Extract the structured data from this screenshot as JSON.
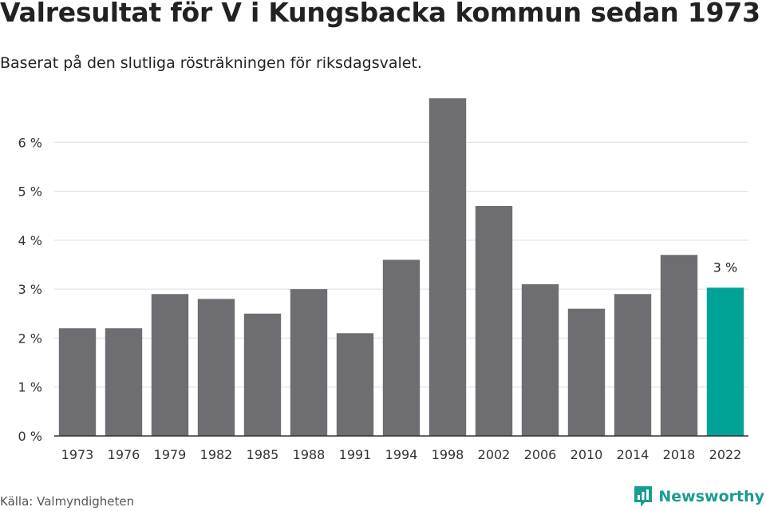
{
  "header": {
    "title": "Valresultat för V i Kungsbacka kommun sedan 1973",
    "subtitle": "Baserat på den slutliga rösträkningen för riksdagsvalet."
  },
  "footer": {
    "source": "Källa: Valmyndigheten",
    "brand": "Newsworthy"
  },
  "colors": {
    "bar": "#6e6d72",
    "highlight": "#00a396",
    "grid": "#dddddd",
    "axis": "#333333",
    "brand": "#1a9c8e"
  },
  "chart_data": {
    "type": "bar",
    "title": "Valresultat för V i Kungsbacka kommun sedan 1973",
    "subtitle": "Baserat på den slutliga rösträkningen för riksdagsvalet.",
    "xlabel": "",
    "ylabel": "",
    "categories": [
      "1973",
      "1976",
      "1979",
      "1982",
      "1985",
      "1988",
      "1991",
      "1994",
      "1998",
      "2002",
      "2006",
      "2010",
      "2014",
      "2018",
      "2022"
    ],
    "values": [
      2.2,
      2.2,
      2.9,
      2.8,
      2.5,
      3.0,
      2.1,
      3.6,
      6.9,
      4.7,
      3.1,
      2.6,
      2.9,
      3.7,
      3.03
    ],
    "ylim": [
      0,
      7
    ],
    "yticks": [
      0,
      1,
      2,
      3,
      4,
      5,
      6
    ],
    "ytick_labels": [
      "0 %",
      "1 %",
      "2 %",
      "3 %",
      "4 %",
      "5 %",
      "6 %"
    ],
    "highlight_index": 14,
    "data_labels": [
      {
        "index": 14,
        "text": "3 %"
      }
    ],
    "grid": true,
    "legend": "none"
  }
}
